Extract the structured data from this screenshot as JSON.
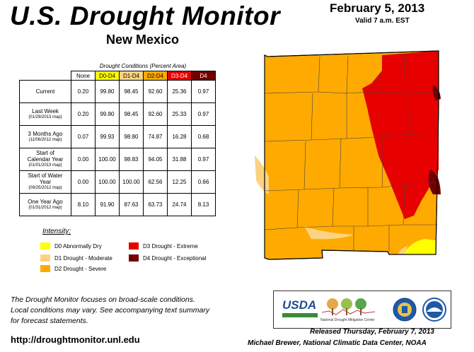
{
  "header": {
    "title": "U.S. Drought Monitor",
    "state": "New Mexico",
    "date": "February 5, 2013",
    "valid": "Valid 7 a.m. EST"
  },
  "table": {
    "caption": "Drought Conditions (Percent Area)",
    "columns": [
      "None",
      "D0-D4",
      "D1-D4",
      "D2-D4",
      "D3-D4",
      "D4"
    ],
    "column_colors": [
      "#ffffff",
      "#ffff00",
      "#fcd37f",
      "#ffaa00",
      "#e60000",
      "#730000"
    ],
    "column_text_colors": [
      "#000000",
      "#000000",
      "#000000",
      "#000000",
      "#ffffff",
      "#ffffff"
    ],
    "rows": [
      {
        "label": "Current",
        "sub": "",
        "values": [
          "0.20",
          "99.80",
          "98.45",
          "92.60",
          "25.36",
          "0.97"
        ]
      },
      {
        "label": "Last Week",
        "sub": "(01/29/2013 map)",
        "values": [
          "0.20",
          "99.80",
          "98.45",
          "92.60",
          "25.33",
          "0.97"
        ]
      },
      {
        "label": "3 Months Ago",
        "sub": "(11/06/2012 map)",
        "values": [
          "0.07",
          "99.93",
          "98.80",
          "74.87",
          "16.28",
          "0.68"
        ]
      },
      {
        "label": "Start of Calendar Year",
        "sub": "(01/01/2013 map)",
        "values": [
          "0.00",
          "100.00",
          "98.83",
          "94.05",
          "31.88",
          "0.97"
        ]
      },
      {
        "label": "Start of Water Year",
        "sub": "(09/25/2012 map)",
        "values": [
          "0.00",
          "100.00",
          "100.00",
          "62.56",
          "12.25",
          "0.66"
        ]
      },
      {
        "label": "One Year Ago",
        "sub": "(01/31/2012 map)",
        "values": [
          "8.10",
          "91.90",
          "87.63",
          "63.73",
          "24.74",
          "8.13"
        ]
      }
    ]
  },
  "legend": {
    "title": "Intensity:",
    "items": [
      {
        "label": "D0 Abnormally Dry",
        "color": "#ffff00"
      },
      {
        "label": "D1 Drought - Moderate",
        "color": "#fcd37f"
      },
      {
        "label": "D2 Drought - Severe",
        "color": "#ffaa00"
      },
      {
        "label": "D3 Drought - Extreme",
        "color": "#e60000"
      },
      {
        "label": "D4 Drought - Exceptional",
        "color": "#730000"
      }
    ]
  },
  "footnote": {
    "line1": "The Drought Monitor focuses on broad-scale conditions.",
    "line2": "Local conditions may vary. See accompanying text summary",
    "line3": "for forecast statements."
  },
  "url": "http://droughtmonitor.unl.edu",
  "logos": {
    "usda": "USDA",
    "ndmc": "National Drought Mitigation Center"
  },
  "released": "Released Thursday, February 7, 2013",
  "author": "Michael Brewer, National Climatic Data Center, NOAA"
}
